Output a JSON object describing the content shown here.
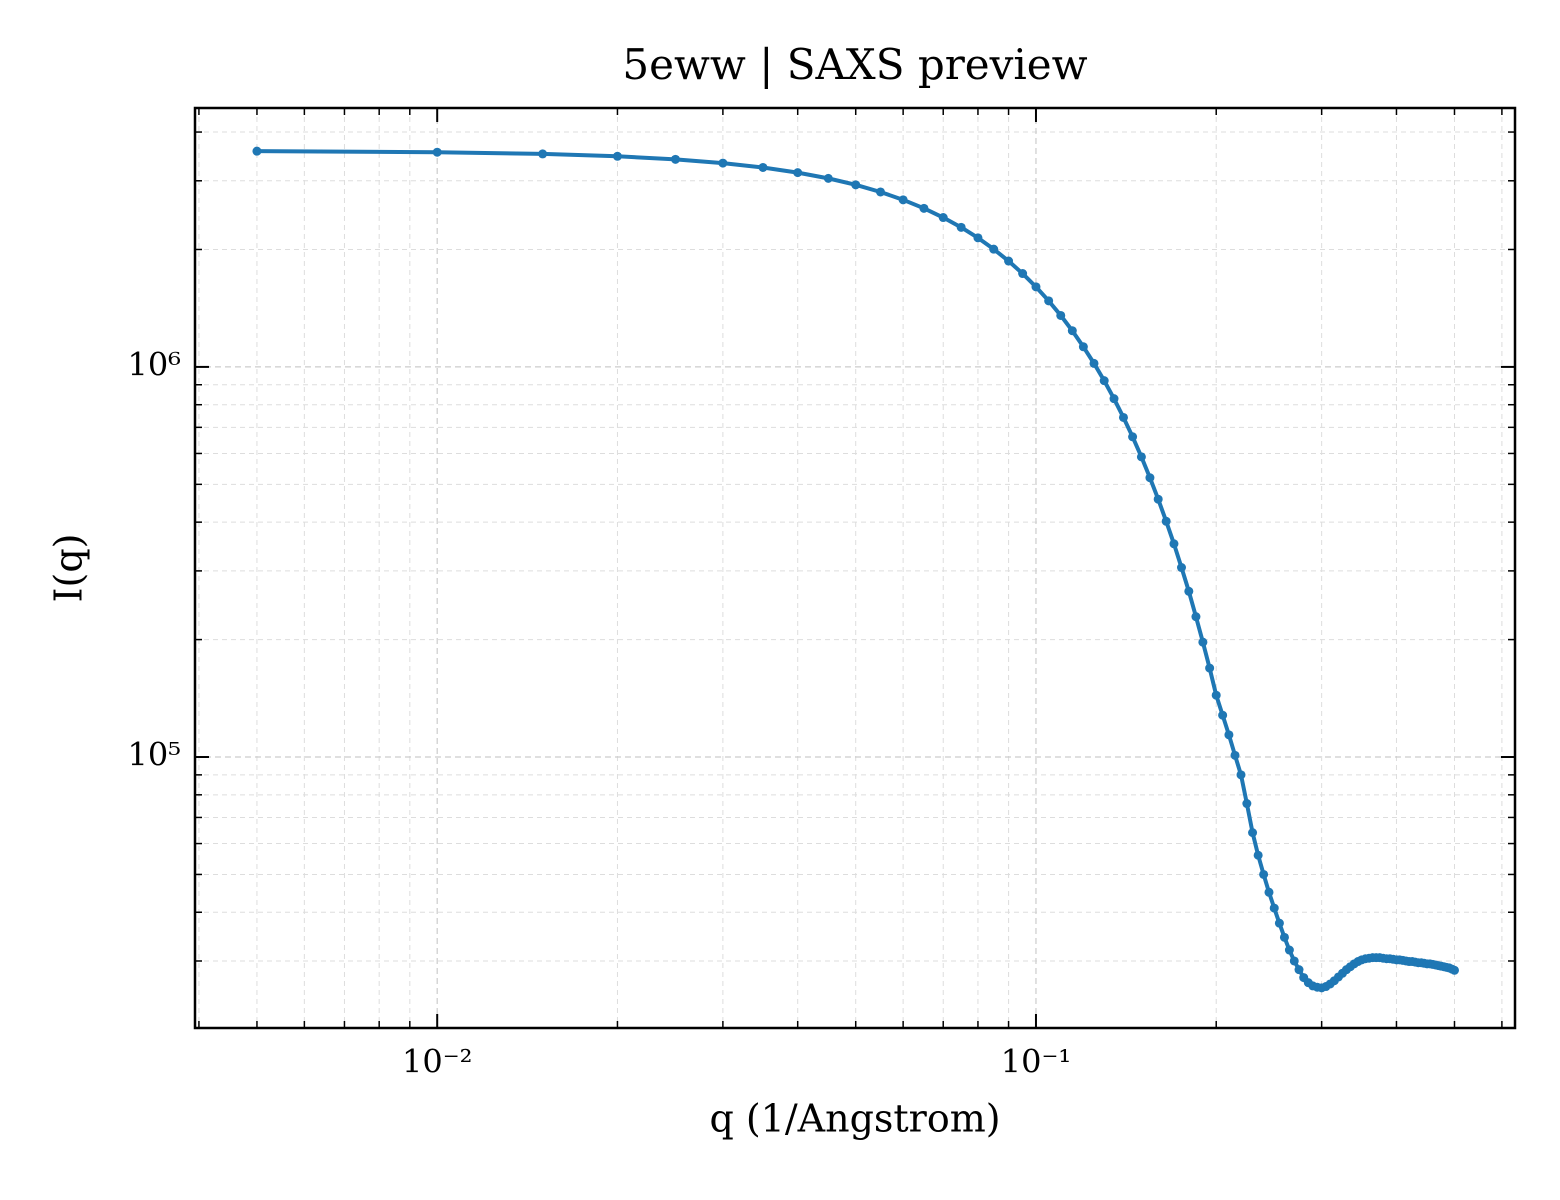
{
  "chart_data": {
    "type": "line",
    "title": "5eww | SAXS preview",
    "xlabel": "q (1/Angstrom)",
    "ylabel": "I(q)",
    "xscale": "log",
    "yscale": "log",
    "grid": true,
    "color": "#1f77b4",
    "xlim": [
      0.00394,
      0.631
    ],
    "ylim": [
      20200,
      4610000
    ],
    "xticks": [
      {
        "value": 0.01,
        "label": "10⁻²"
      },
      {
        "value": 0.1,
        "label": "10⁻¹"
      }
    ],
    "yticks": [
      {
        "value": 100000,
        "label": "10⁵"
      },
      {
        "value": 1000000,
        "label": "10⁶"
      }
    ],
    "xminor_ticks": [
      0.004,
      0.005,
      0.006,
      0.007,
      0.008,
      0.009,
      0.02,
      0.03,
      0.04,
      0.05,
      0.06,
      0.07,
      0.08,
      0.09,
      0.2,
      0.3,
      0.4,
      0.5,
      0.6
    ],
    "yminor_ticks": [
      30000,
      40000,
      50000,
      60000,
      70000,
      80000,
      90000,
      200000,
      300000,
      400000,
      500000,
      600000,
      700000,
      800000,
      900000,
      2000000,
      3000000,
      4000000
    ],
    "x": [
      0.005,
      0.01,
      0.015,
      0.02,
      0.025,
      0.03,
      0.035,
      0.04,
      0.045,
      0.05,
      0.055,
      0.06,
      0.065,
      0.07,
      0.075,
      0.08,
      0.085,
      0.09,
      0.095,
      0.1,
      0.105,
      0.11,
      0.115,
      0.12,
      0.125,
      0.13,
      0.135,
      0.14,
      0.145,
      0.15,
      0.155,
      0.16,
      0.165,
      0.17,
      0.175,
      0.18,
      0.185,
      0.19,
      0.195,
      0.2,
      0.205,
      0.21,
      0.215,
      0.22,
      0.225,
      0.23,
      0.235,
      0.24,
      0.245,
      0.25,
      0.255,
      0.26,
      0.265,
      0.27,
      0.275,
      0.28,
      0.285,
      0.29,
      0.295,
      0.3,
      0.305,
      0.31,
      0.315,
      0.32,
      0.325,
      0.33,
      0.335,
      0.34,
      0.345,
      0.35,
      0.355,
      0.36,
      0.365,
      0.37,
      0.375,
      0.38,
      0.385,
      0.39,
      0.395,
      0.4,
      0.405,
      0.41,
      0.415,
      0.42,
      0.425,
      0.43,
      0.435,
      0.44,
      0.445,
      0.45,
      0.455,
      0.46,
      0.465,
      0.47,
      0.475,
      0.48,
      0.485,
      0.49,
      0.495,
      0.5
    ],
    "values": [
      3573000,
      3551000,
      3516000,
      3467000,
      3405000,
      3330000,
      3245000,
      3148000,
      3043000,
      2929000,
      2808000,
      2681000,
      2550000,
      2415000,
      2279000,
      2142000,
      2004000,
      1868000,
      1735000,
      1604000,
      1477000,
      1355000,
      1238000,
      1126000,
      1021000,
      922000,
      829000,
      742000,
      662000,
      588000,
      520000,
      458000,
      402000,
      352000,
      306000,
      266000,
      229000,
      197000,
      169000,
      144000,
      128000,
      114000,
      101000,
      90000,
      76000,
      64000,
      56000,
      50000,
      45000,
      41000,
      37500,
      34500,
      32000,
      30000,
      28500,
      27200,
      26400,
      25900,
      25700,
      25600,
      25800,
      26200,
      26700,
      27300,
      27900,
      28500,
      29000,
      29500,
      29900,
      30200,
      30400,
      30500,
      30600,
      30600,
      30600,
      30500,
      30400,
      30400,
      30300,
      30200,
      30200,
      30100,
      30000,
      29900,
      29900,
      29800,
      29700,
      29700,
      29600,
      29500,
      29500,
      29400,
      29300,
      29200,
      29100,
      29000,
      28900,
      28800,
      28600,
      28400
    ]
  }
}
